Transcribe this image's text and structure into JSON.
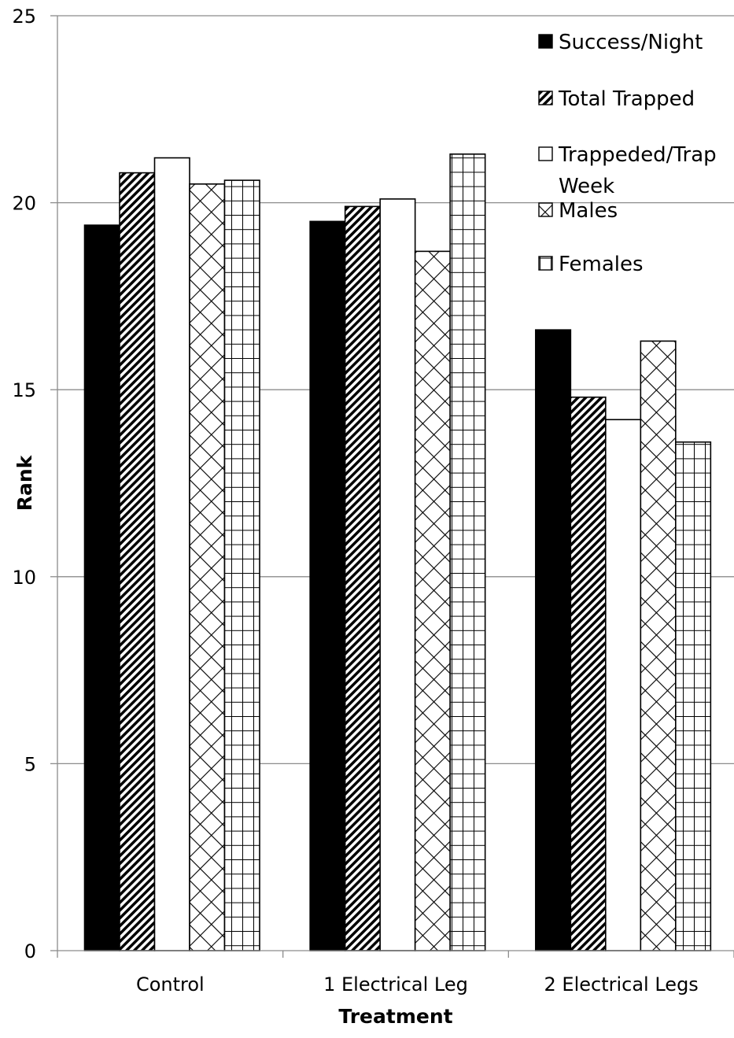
{
  "chart_data": {
    "type": "bar",
    "title": "",
    "xlabel": "Treatment",
    "ylabel": "Rank",
    "ylim": [
      0,
      25
    ],
    "y_ticks": [
      "0",
      "5",
      "10",
      "15",
      "20",
      "25"
    ],
    "grid": true,
    "legend_position": "top-right",
    "categories": [
      "Control",
      "1 Electrical Leg",
      "2 Electrical Legs"
    ],
    "series": [
      {
        "name": "Success/Night",
        "pattern": "solid-black",
        "values": [
          19.4,
          19.5,
          16.6
        ]
      },
      {
        "name": "Total Trapped",
        "pattern": "diagonal-stripes",
        "values": [
          20.8,
          19.9,
          14.8
        ]
      },
      {
        "name": "Trappeded/Trap Week",
        "legend_lines": [
          "Trappeded/Trap",
          "Week"
        ],
        "pattern": "white",
        "values": [
          21.2,
          20.1,
          14.2
        ]
      },
      {
        "name": "Males",
        "pattern": "diagonal-crosshatch",
        "values": [
          20.5,
          18.7,
          16.3
        ]
      },
      {
        "name": "Females",
        "pattern": "grid",
        "values": [
          20.6,
          21.3,
          13.6
        ]
      }
    ]
  }
}
